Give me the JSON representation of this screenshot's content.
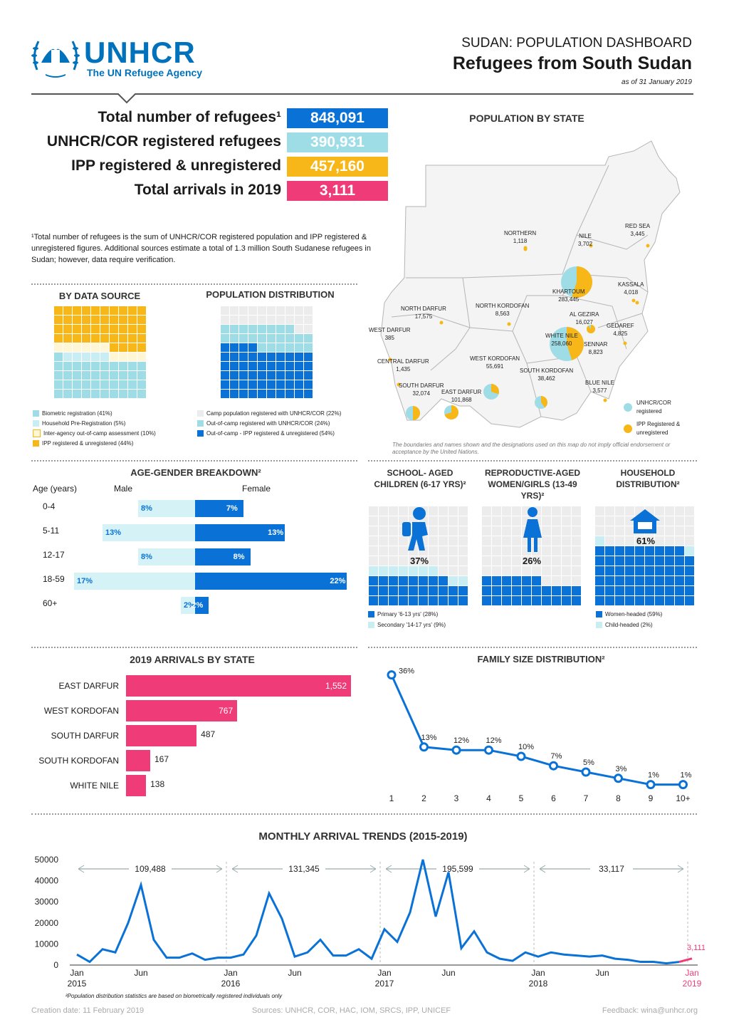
{
  "header": {
    "logo_name": "UNHCR",
    "logo_sub": "The UN Refugee Agency",
    "dash_title": "SUDAN: POPULATION DASHBOARD",
    "main_title": "Refugees from South Sudan",
    "as_of": "as of 31 January 2019"
  },
  "kpis": [
    {
      "label": "Total number of refugees¹",
      "value": "848,091",
      "color": "#0a72d6"
    },
    {
      "label": "UNHCR/COR registered refugees",
      "value": "390,931",
      "color": "#9fdde6"
    },
    {
      "label": "IPP registered & unregistered",
      "value": "457,160",
      "color": "#f7b719"
    },
    {
      "label": "Total arrivals in 2019",
      "value": "3,111",
      "color": "#ef3b78"
    }
  ],
  "footnote1": "¹Total number of refugees is the sum of UNHCR/COR registered population and IPP registered & unregistered figures. Additional sources estimate a total of 1.3 million South Sudanese refugees in Sudan; however, data require verification.",
  "by_source": {
    "title": "BY DATA SOURCE",
    "legend": [
      {
        "label": "Biometric registration (41%)",
        "color": "#9fdde6"
      },
      {
        "label": "Household Pre-Registration (5%)",
        "color": "#c8eef3"
      },
      {
        "label": "Inter-agency out-of-camp assessment (10%)",
        "color": "#fff6d6"
      },
      {
        "label": "IPP registered & unregistered (44%)",
        "color": "#f7b719"
      }
    ]
  },
  "pop_dist": {
    "title": "POPULATION DISTRIBUTION",
    "legend": [
      {
        "label": "Camp population registered with UNHCR/COR (22%)",
        "color": "#ececec"
      },
      {
        "label": "Out-of-camp registered with UNHCR/COR (24%)",
        "color": "#9fdde6"
      },
      {
        "label": "Out-of-camp - IPP registered & unregistered (54%)",
        "color": "#0a72d6"
      }
    ]
  },
  "map": {
    "title": "POPULATION BY STATE",
    "disclaimer": "The boundaries and names shown and the designations used on this map do not imply official endorsement or acceptance by the United Nations.",
    "legend_unhcr": "UNHCR/COR registered",
    "legend_ipp": "IPP Registered & unregistered",
    "states": [
      {
        "name": "NORTHERN",
        "value": "1,118"
      },
      {
        "name": "NILE",
        "value": "3,702"
      },
      {
        "name": "RED SEA",
        "value": "3,445"
      },
      {
        "name": "KASSALA",
        "value": "4,018"
      },
      {
        "name": "KHARTOUM",
        "value": "283,445"
      },
      {
        "name": "AL GEZIRA",
        "value": "16,027"
      },
      {
        "name": "GEDAREF",
        "value": "4,825"
      },
      {
        "name": "WHITE NILE",
        "value": "258,060"
      },
      {
        "name": "SENNAR",
        "value": "8,823"
      },
      {
        "name": "BLUE NILE",
        "value": "3,577"
      },
      {
        "name": "NORTH DARFUR",
        "value": "17,575"
      },
      {
        "name": "NORTH KORDOFAN",
        "value": "8,563"
      },
      {
        "name": "WEST DARFUR",
        "value": "385"
      },
      {
        "name": "CENTRAL DARFUR",
        "value": "1,435"
      },
      {
        "name": "WEST KORDOFAN",
        "value": "55,691"
      },
      {
        "name": "SOUTH KORDOFAN",
        "value": "38,462"
      },
      {
        "name": "SOUTH DARFUR",
        "value": "32,074"
      },
      {
        "name": "EAST DARFUR",
        "value": "101,868"
      }
    ]
  },
  "age_gender": {
    "title": "AGE-GENDER BREAKDOWN²",
    "col_age": "Age (years)",
    "col_male": "Male",
    "col_female": "Female",
    "rows": [
      {
        "age": "0-4",
        "male": 8,
        "female": 7,
        "male_label": "8%",
        "female_label": "7%"
      },
      {
        "age": "5-11",
        "male": 13,
        "female": 13,
        "male_label": "13%",
        "female_label": "13%"
      },
      {
        "age": "12-17",
        "male": 8,
        "female": 8,
        "male_label": "8%",
        "female_label": "8%"
      },
      {
        "age": "18-59",
        "male": 17,
        "female": 22,
        "male_label": "17%",
        "female_label": "22%"
      },
      {
        "age": "60+",
        "male": 2,
        "female": 2,
        "male_label": "2%",
        "female_label": "2%"
      }
    ]
  },
  "school": {
    "title": "SCHOOL- AGED CHILDREN (6-17 YRS)²",
    "value_label": "37%",
    "legend": [
      "Primary '6-13 yrs' (28%)",
      "Secondary '14-17 yrs' (9%)"
    ]
  },
  "repro": {
    "title": "REPRODUCTIVE-AGED WOMEN/GIRLS (13-49 YRS)²",
    "value_label": "26%"
  },
  "household": {
    "title": "HOUSEHOLD DISTRIBUTION²",
    "value_label": "61%",
    "legend": [
      "Women-headed (59%)",
      "Child-headed (2%)"
    ]
  },
  "arrivals_state": {
    "title": "2019 ARRIVALS BY STATE",
    "rows": [
      {
        "state": "EAST DARFUR",
        "value": 1552,
        "label": "1,552"
      },
      {
        "state": "WEST KORDOFAN",
        "value": 767,
        "label": "767"
      },
      {
        "state": "SOUTH DARFUR",
        "value": 487,
        "label": "487"
      },
      {
        "state": "SOUTH KORDOFAN",
        "value": 167,
        "label": "167"
      },
      {
        "state": "WHITE NILE",
        "value": 138,
        "label": "138"
      }
    ]
  },
  "chart_data": [
    {
      "type": "bar",
      "title": "2019 ARRIVALS BY STATE",
      "categories": [
        "EAST DARFUR",
        "WEST KORDOFAN",
        "SOUTH DARFUR",
        "SOUTH KORDOFAN",
        "WHITE NILE"
      ],
      "values": [
        1552,
        767,
        487,
        167,
        138
      ]
    },
    {
      "type": "line",
      "title": "FAMILY SIZE DISTRIBUTION²",
      "x": [
        "1",
        "2",
        "3",
        "4",
        "5",
        "6",
        "7",
        "8",
        "9",
        "10+"
      ],
      "values": [
        36,
        13,
        12,
        12,
        10,
        7,
        5,
        3,
        1,
        1
      ],
      "labels": [
        "36%",
        "13%",
        "12%",
        "12%",
        "10%",
        "7%",
        "5%",
        "3%",
        "1%",
        "1%"
      ]
    },
    {
      "type": "line",
      "title": "MONTHLY ARRIVAL TRENDS (2015-2019)",
      "yticks": [
        "0",
        "10000",
        "20000",
        "30000",
        "40000",
        "50000"
      ],
      "ylim": [
        0,
        50000
      ],
      "xticks": [
        {
          "month": "Jan",
          "year": "2015",
          "i": 0
        },
        {
          "month": "Jun",
          "i": 5
        },
        {
          "month": "Jan",
          "year": "2016",
          "i": 12
        },
        {
          "month": "Jun",
          "i": 17
        },
        {
          "month": "Jan",
          "year": "2017",
          "i": 24
        },
        {
          "month": "Jun",
          "i": 29
        },
        {
          "month": "Jan",
          "year": "2018",
          "i": 36
        },
        {
          "month": "Jun",
          "i": 41
        },
        {
          "month": "Jan",
          "year": "2019",
          "i": 48
        }
      ],
      "annual_totals": [
        "109,488",
        "131,345",
        "195,599",
        "33,117"
      ],
      "last_label": "3,111",
      "values": [
        5000,
        1500,
        7500,
        6000,
        20000,
        38000,
        12000,
        3500,
        3500,
        5500,
        2500,
        3500,
        3500,
        5000,
        14000,
        34000,
        22000,
        4000,
        6000,
        12000,
        4500,
        4500,
        7500,
        3000,
        17000,
        11000,
        25000,
        50000,
        23000,
        44000,
        8000,
        16000,
        6000,
        3000,
        2000,
        6000,
        4000,
        6000,
        5000,
        4500,
        4000,
        4500,
        3000,
        2500,
        1500,
        1500,
        800,
        1500,
        3111
      ]
    }
  ],
  "family_size_title": "FAMILY SIZE DISTRIBUTION²",
  "monthly_title": "MONTHLY ARRIVAL TRENDS (2015-2019)",
  "footnote2": "²Population distribution statistics are based on biometrically registered individuals only",
  "footer": {
    "created": "Creation date: 11 February 2019",
    "sources": "Sources: UNHCR, COR, HAC, IOM, SRCS, IPP, UNICEF",
    "feedback": "Feedback: wina@unhcr.org"
  }
}
